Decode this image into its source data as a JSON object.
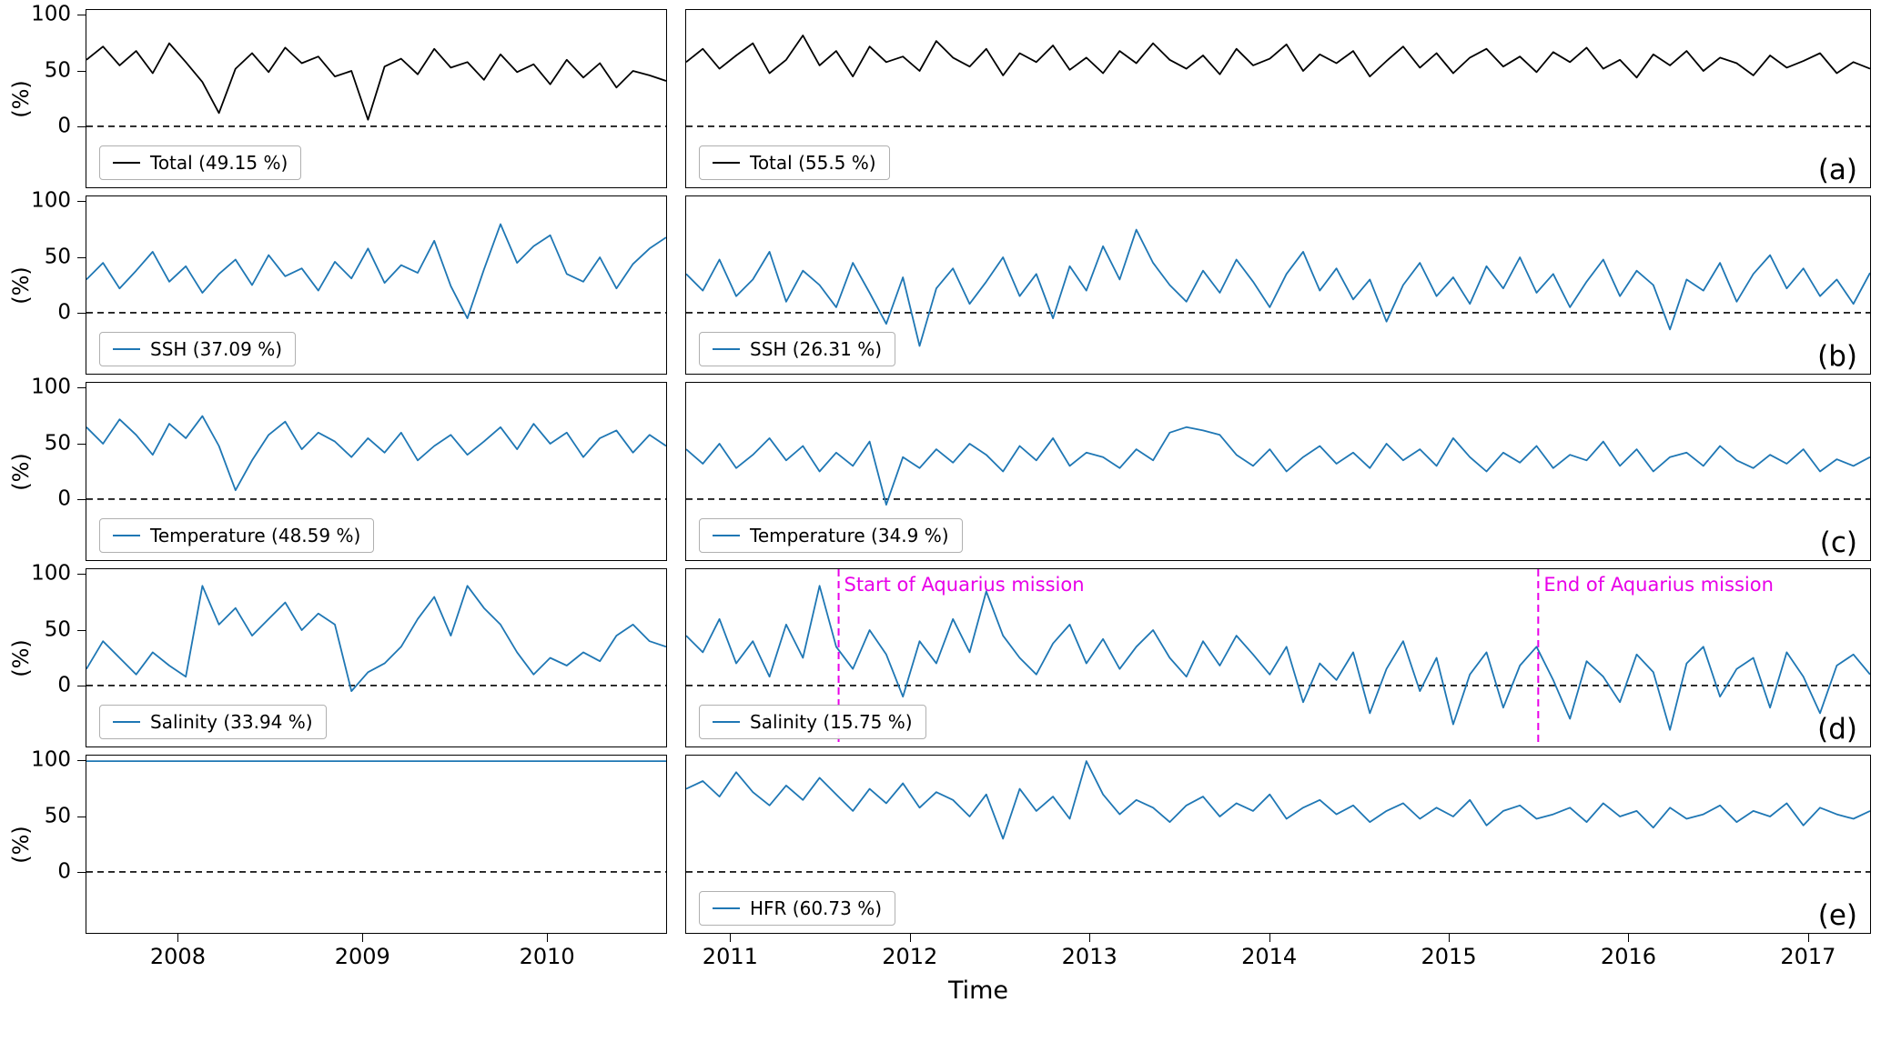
{
  "figure": {
    "ylabel": "(%)",
    "xlabel": "Time",
    "row_labels": [
      "(a)",
      "(b)",
      "(c)",
      "(d)",
      "(e)"
    ],
    "yticks": [
      100,
      50,
      0
    ],
    "ylim": [
      -55,
      105
    ],
    "colors": {
      "total_line": "#000000",
      "series_line": "#1f77b4",
      "annotation": "#e800e8",
      "zero_line": "#000000"
    },
    "xaxis": {
      "left": {
        "xlim": [
          2007.5,
          2010.65
        ],
        "ticks": [
          2008,
          2009,
          2010
        ]
      },
      "right": {
        "xlim": [
          2010.75,
          2017.35
        ],
        "ticks": [
          2011,
          2012,
          2013,
          2014,
          2015,
          2016,
          2017
        ]
      }
    }
  },
  "chart_data": [
    {
      "id": "a-left",
      "row": "a",
      "col": "left",
      "type": "line",
      "series": "Total",
      "legend": "Total (49.15 %)",
      "color": "#000000",
      "values": [
        60,
        72,
        55,
        68,
        48,
        75,
        58,
        40,
        12,
        52,
        66,
        49,
        71,
        57,
        63,
        45,
        50,
        6,
        54,
        61,
        47,
        70,
        53,
        58,
        42,
        65,
        49,
        56,
        38,
        60,
        44,
        57,
        35,
        50,
        46,
        41
      ]
    },
    {
      "id": "a-right",
      "row": "a",
      "col": "right",
      "type": "line",
      "series": "Total",
      "legend": "Total (55.5 %)",
      "color": "#000000",
      "values": [
        58,
        70,
        52,
        64,
        75,
        48,
        60,
        82,
        55,
        68,
        45,
        72,
        58,
        63,
        50,
        77,
        62,
        54,
        70,
        46,
        66,
        58,
        73,
        51,
        62,
        48,
        68,
        57,
        75,
        60,
        52,
        64,
        47,
        70,
        55,
        61,
        74,
        50,
        65,
        57,
        68,
        45,
        59,
        72,
        53,
        66,
        48,
        62,
        70,
        54,
        63,
        49,
        67,
        58,
        71,
        52,
        60,
        44,
        65,
        55,
        68,
        50,
        62,
        57,
        46,
        64,
        53,
        59,
        66,
        48,
        58,
        52
      ]
    },
    {
      "id": "b-left",
      "row": "b",
      "col": "left",
      "type": "line",
      "series": "SSH",
      "legend": "SSH (37.09 %)",
      "color": "#1f77b4",
      "values": [
        30,
        45,
        22,
        38,
        55,
        28,
        42,
        18,
        35,
        48,
        25,
        52,
        33,
        40,
        20,
        46,
        31,
        58,
        27,
        43,
        36,
        65,
        24,
        -5,
        39,
        80,
        45,
        60,
        70,
        35,
        28,
        50,
        22,
        44,
        58,
        68
      ]
    },
    {
      "id": "b-right",
      "row": "b",
      "col": "right",
      "type": "line",
      "series": "SSH",
      "legend": "SSH (26.31 %)",
      "color": "#1f77b4",
      "values": [
        35,
        20,
        48,
        15,
        30,
        55,
        10,
        38,
        25,
        5,
        45,
        18,
        -10,
        32,
        -30,
        22,
        40,
        8,
        28,
        50,
        15,
        35,
        -5,
        42,
        20,
        60,
        30,
        75,
        45,
        25,
        10,
        38,
        18,
        48,
        28,
        5,
        35,
        55,
        20,
        40,
        12,
        30,
        -8,
        25,
        45,
        15,
        32,
        8,
        42,
        22,
        50,
        18,
        35,
        5,
        28,
        48,
        15,
        38,
        25,
        -15,
        30,
        20,
        45,
        10,
        35,
        52,
        22,
        40,
        15,
        30,
        8,
        36
      ]
    },
    {
      "id": "c-left",
      "row": "c",
      "col": "left",
      "type": "line",
      "series": "Temperature",
      "legend": "Temperature (48.59 %)",
      "color": "#1f77b4",
      "values": [
        65,
        50,
        72,
        58,
        40,
        68,
        55,
        75,
        48,
        8,
        35,
        58,
        70,
        45,
        60,
        52,
        38,
        55,
        42,
        60,
        35,
        48,
        58,
        40,
        52,
        65,
        45,
        68,
        50,
        60,
        38,
        55,
        62,
        42,
        58,
        48
      ]
    },
    {
      "id": "c-right",
      "row": "c",
      "col": "right",
      "type": "line",
      "series": "Temperature",
      "legend": "Temperature (34.9 %)",
      "color": "#1f77b4",
      "values": [
        45,
        32,
        50,
        28,
        40,
        55,
        35,
        48,
        25,
        42,
        30,
        52,
        -5,
        38,
        28,
        45,
        33,
        50,
        40,
        25,
        48,
        35,
        55,
        30,
        42,
        38,
        28,
        45,
        35,
        60,
        65,
        62,
        58,
        40,
        30,
        45,
        25,
        38,
        48,
        32,
        42,
        28,
        50,
        35,
        45,
        30,
        55,
        38,
        25,
        42,
        33,
        48,
        28,
        40,
        35,
        52,
        30,
        45,
        25,
        38,
        42,
        30,
        48,
        35,
        28,
        40,
        32,
        45,
        25,
        36,
        30,
        38
      ]
    },
    {
      "id": "d-left",
      "row": "d",
      "col": "left",
      "type": "line",
      "series": "Salinity",
      "legend": "Salinity (33.94 %)",
      "color": "#1f77b4",
      "values": [
        15,
        40,
        25,
        10,
        30,
        18,
        8,
        90,
        55,
        70,
        45,
        60,
        75,
        50,
        65,
        55,
        -5,
        12,
        20,
        35,
        60,
        80,
        45,
        90,
        70,
        55,
        30,
        10,
        25,
        18,
        30,
        22,
        45,
        55,
        40,
        35
      ]
    },
    {
      "id": "d-right",
      "row": "d",
      "col": "right",
      "type": "line",
      "series": "Salinity",
      "legend": "Salinity (15.75 %)",
      "color": "#1f77b4",
      "annotations": {
        "vlines": [
          {
            "x": 2011.6,
            "label": "Start of Aquarius mission"
          },
          {
            "x": 2015.5,
            "label": "End of Aquarius mission"
          }
        ]
      },
      "values": [
        45,
        30,
        60,
        20,
        40,
        8,
        55,
        25,
        90,
        35,
        15,
        50,
        28,
        -10,
        40,
        20,
        60,
        30,
        85,
        45,
        25,
        10,
        38,
        55,
        20,
        42,
        15,
        35,
        50,
        25,
        8,
        40,
        18,
        45,
        28,
        10,
        35,
        -15,
        20,
        5,
        30,
        -25,
        15,
        40,
        -5,
        25,
        -35,
        10,
        30,
        -20,
        18,
        35,
        5,
        -30,
        22,
        8,
        -15,
        28,
        12,
        -40,
        20,
        35,
        -10,
        15,
        25,
        -20,
        30,
        8,
        -25,
        18,
        28,
        10
      ]
    },
    {
      "id": "e-left",
      "row": "e",
      "col": "left",
      "type": "line",
      "series": "HFR",
      "legend": null,
      "color": "#1f77b4",
      "values": [
        100,
        100
      ]
    },
    {
      "id": "e-right",
      "row": "e",
      "col": "right",
      "type": "line",
      "series": "HFR",
      "legend": "HFR (60.73 %)",
      "color": "#1f77b4",
      "values": [
        75,
        82,
        68,
        90,
        72,
        60,
        78,
        65,
        85,
        70,
        55,
        75,
        62,
        80,
        58,
        72,
        65,
        50,
        70,
        30,
        75,
        55,
        68,
        48,
        100,
        70,
        52,
        65,
        58,
        45,
        60,
        68,
        50,
        62,
        55,
        70,
        48,
        58,
        65,
        52,
        60,
        45,
        55,
        62,
        48,
        58,
        50,
        65,
        42,
        55,
        60,
        48,
        52,
        58,
        45,
        62,
        50,
        55,
        40,
        58,
        48,
        52,
        60,
        45,
        55,
        50,
        62,
        42,
        58,
        52,
        48,
        55
      ]
    }
  ]
}
